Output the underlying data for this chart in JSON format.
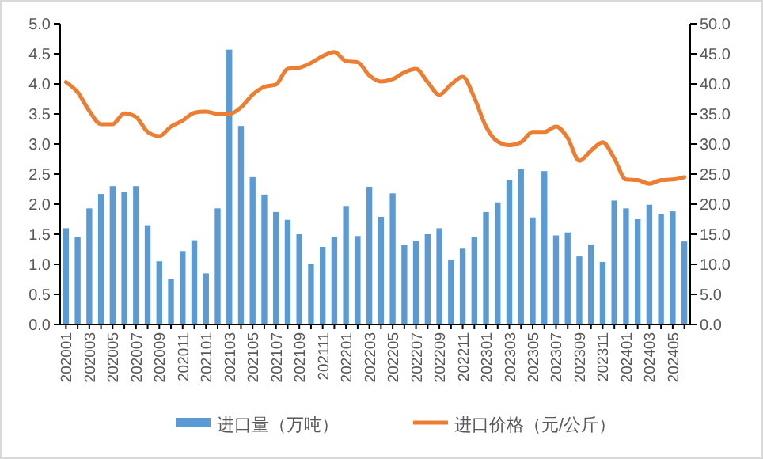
{
  "chart_data": {
    "type": "bar",
    "categories": [
      "202001",
      null,
      "202003",
      null,
      "202005",
      null,
      "202007",
      null,
      "202009",
      null,
      "202011",
      null,
      "202101",
      null,
      "202103",
      null,
      "202105",
      null,
      "202107",
      null,
      "202109",
      null,
      "202111",
      null,
      "202201",
      null,
      "202203",
      null,
      "202205",
      null,
      "202207",
      null,
      "202209",
      null,
      "202211",
      null,
      "202301",
      null,
      "202303",
      null,
      "202305",
      null,
      "202307",
      null,
      "202309",
      null,
      "202311",
      null,
      "202401",
      null,
      "202403",
      null,
      "202405",
      null
    ],
    "series": [
      {
        "name": "进口量（万吨）",
        "color": "#5b9bd5",
        "values": [
          1.6,
          1.45,
          1.93,
          2.17,
          2.3,
          2.2,
          2.3,
          1.65,
          1.05,
          0.75,
          1.22,
          1.4,
          0.85,
          1.93,
          4.57,
          3.3,
          2.45,
          2.16,
          1.87,
          1.74,
          1.5,
          1.0,
          1.29,
          1.45,
          1.97,
          1.47,
          2.29,
          1.79,
          2.18,
          1.32,
          1.39,
          1.5,
          1.6,
          1.08,
          1.26,
          1.45,
          1.87,
          2.03,
          2.4,
          2.58,
          1.78,
          2.55,
          1.48,
          1.53,
          1.13,
          1.33,
          1.04,
          2.06,
          1.93,
          1.75,
          1.99,
          1.83,
          1.88,
          1.38
        ]
      },
      {
        "name": "进口价格（元/公斤）",
        "color": "#ed7d31",
        "type": "line",
        "axis": "y2",
        "values": [
          40.3,
          38.6,
          35.5,
          33.3,
          33.3,
          35.1,
          34.5,
          32.0,
          31.3,
          32.9,
          33.9,
          35.2,
          35.4,
          35.0,
          35.0,
          36.1,
          38.2,
          39.5,
          39.9,
          42.5,
          42.7,
          43.5,
          44.6,
          45.3,
          43.8,
          43.6,
          41.4,
          40.4,
          40.8,
          41.9,
          42.5,
          40.3,
          38.2,
          39.9,
          41.2,
          37.7,
          32.9,
          30.4,
          29.8,
          30.3,
          32.0,
          32.0,
          32.9,
          31.0,
          27.2,
          28.9,
          30.3,
          27.6,
          24.1,
          24.0,
          23.4,
          24.0,
          24.1,
          24.5
        ]
      }
    ],
    "ylim": [
      0,
      5
    ],
    "yticks": [
      {
        "value": 0,
        "label": "0.0"
      },
      {
        "value": 0.5,
        "label": "0.5"
      },
      {
        "value": 1,
        "label": "1.0"
      },
      {
        "value": 1.5,
        "label": "1.5"
      },
      {
        "value": 2,
        "label": "2.0"
      },
      {
        "value": 2.5,
        "label": "2.5"
      },
      {
        "value": 3,
        "label": "3.0"
      },
      {
        "value": 3.5,
        "label": "3.5"
      },
      {
        "value": 4,
        "label": "4.0"
      },
      {
        "value": 4.5,
        "label": "4.5"
      },
      {
        "value": 5,
        "label": "5.0"
      }
    ],
    "y2lim": [
      0,
      50
    ],
    "y2ticks": [
      {
        "value": 0,
        "label": "0.0"
      },
      {
        "value": 5,
        "label": "5.0"
      },
      {
        "value": 10,
        "label": "10.0"
      },
      {
        "value": 15,
        "label": "15.0"
      },
      {
        "value": 20,
        "label": "20.0"
      },
      {
        "value": 25,
        "label": "25.0"
      },
      {
        "value": 30,
        "label": "30.0"
      },
      {
        "value": 35,
        "label": "35.0"
      },
      {
        "value": 40,
        "label": "40.0"
      },
      {
        "value": 45,
        "label": "45.0"
      },
      {
        "value": 50,
        "label": "50.0"
      }
    ],
    "grid": false,
    "legend": "bottom"
  }
}
